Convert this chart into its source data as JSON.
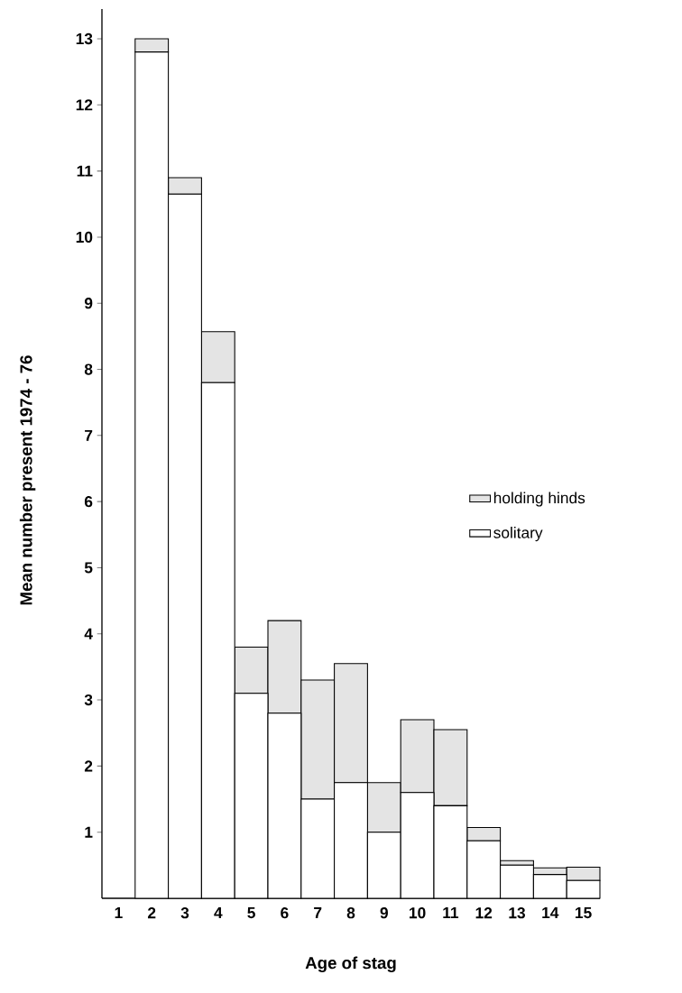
{
  "chart_data": {
    "type": "bar",
    "xlabel": "Age of stag",
    "ylabel": "Mean number present  1974 - 76",
    "categories": [
      "1",
      "2",
      "3",
      "4",
      "5",
      "6",
      "7",
      "8",
      "9",
      "10",
      "11",
      "12",
      "13",
      "14",
      "15"
    ],
    "stacked": true,
    "series": [
      {
        "name": "solitary",
        "color": "#ffffff",
        "values": [
          0,
          12.8,
          10.65,
          7.8,
          3.1,
          2.8,
          1.5,
          1.75,
          1.0,
          1.6,
          1.4,
          0.87,
          0.5,
          0.36,
          0.27
        ]
      },
      {
        "name": "holding hinds",
        "color": "#e4e4e4",
        "values": [
          0,
          0.2,
          0.25,
          0.77,
          0.7,
          1.4,
          1.8,
          1.8,
          0.75,
          1.1,
          1.15,
          0.2,
          0.07,
          0.1,
          0.2
        ]
      }
    ],
    "ylim": [
      0,
      13.45
    ],
    "yticks": [
      1,
      2,
      3,
      4,
      5,
      6,
      7,
      8,
      9,
      10,
      11,
      12,
      13
    ],
    "legend": "right"
  }
}
